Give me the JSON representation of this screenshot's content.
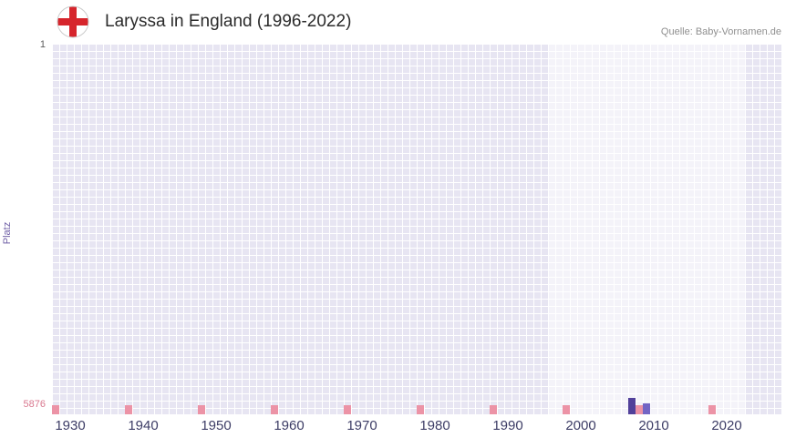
{
  "header": {
    "title": "Laryssa in England (1996-2022)",
    "source": "Quelle: Baby-Vornamen.de",
    "flag_icon": "england-flag-icon"
  },
  "chart_data": {
    "type": "bar",
    "title": "Laryssa in England (1996-2022)",
    "xlabel": "",
    "ylabel": "Platz",
    "grid": true,
    "legend": false,
    "y_axis": {
      "top_label": "1",
      "bottom_label": "5876",
      "min": 1,
      "max": 5876,
      "inverted": true
    },
    "x_axis": {
      "start_year": 1928,
      "end_year": 2028,
      "tick_years": [
        1930,
        1940,
        1950,
        1960,
        1970,
        1980,
        1990,
        2000,
        2010,
        2020
      ]
    },
    "highlight_period": {
      "from": 1996,
      "to": 2022
    },
    "decade_marker_years": [
      1928,
      1938,
      1948,
      1958,
      1968,
      1978,
      1988,
      1998,
      2008,
      2018
    ],
    "points": [
      {
        "year": 2007,
        "rank": 5620,
        "color": "#51409a"
      },
      {
        "year": 2009,
        "rank": 5700,
        "color": "#7365c4"
      }
    ],
    "colors": {
      "plot_background": "#e7e5f2",
      "highlight_background": "#f2f1f9",
      "grid_line": "#ffffff",
      "decade_marker": "#ec93a6",
      "x_tick_text": "#3d3d66",
      "bottom_rank_text": "#d9788f",
      "y_label_text": "#6f5fa6",
      "flag_cross_red": "#d6252c"
    }
  }
}
